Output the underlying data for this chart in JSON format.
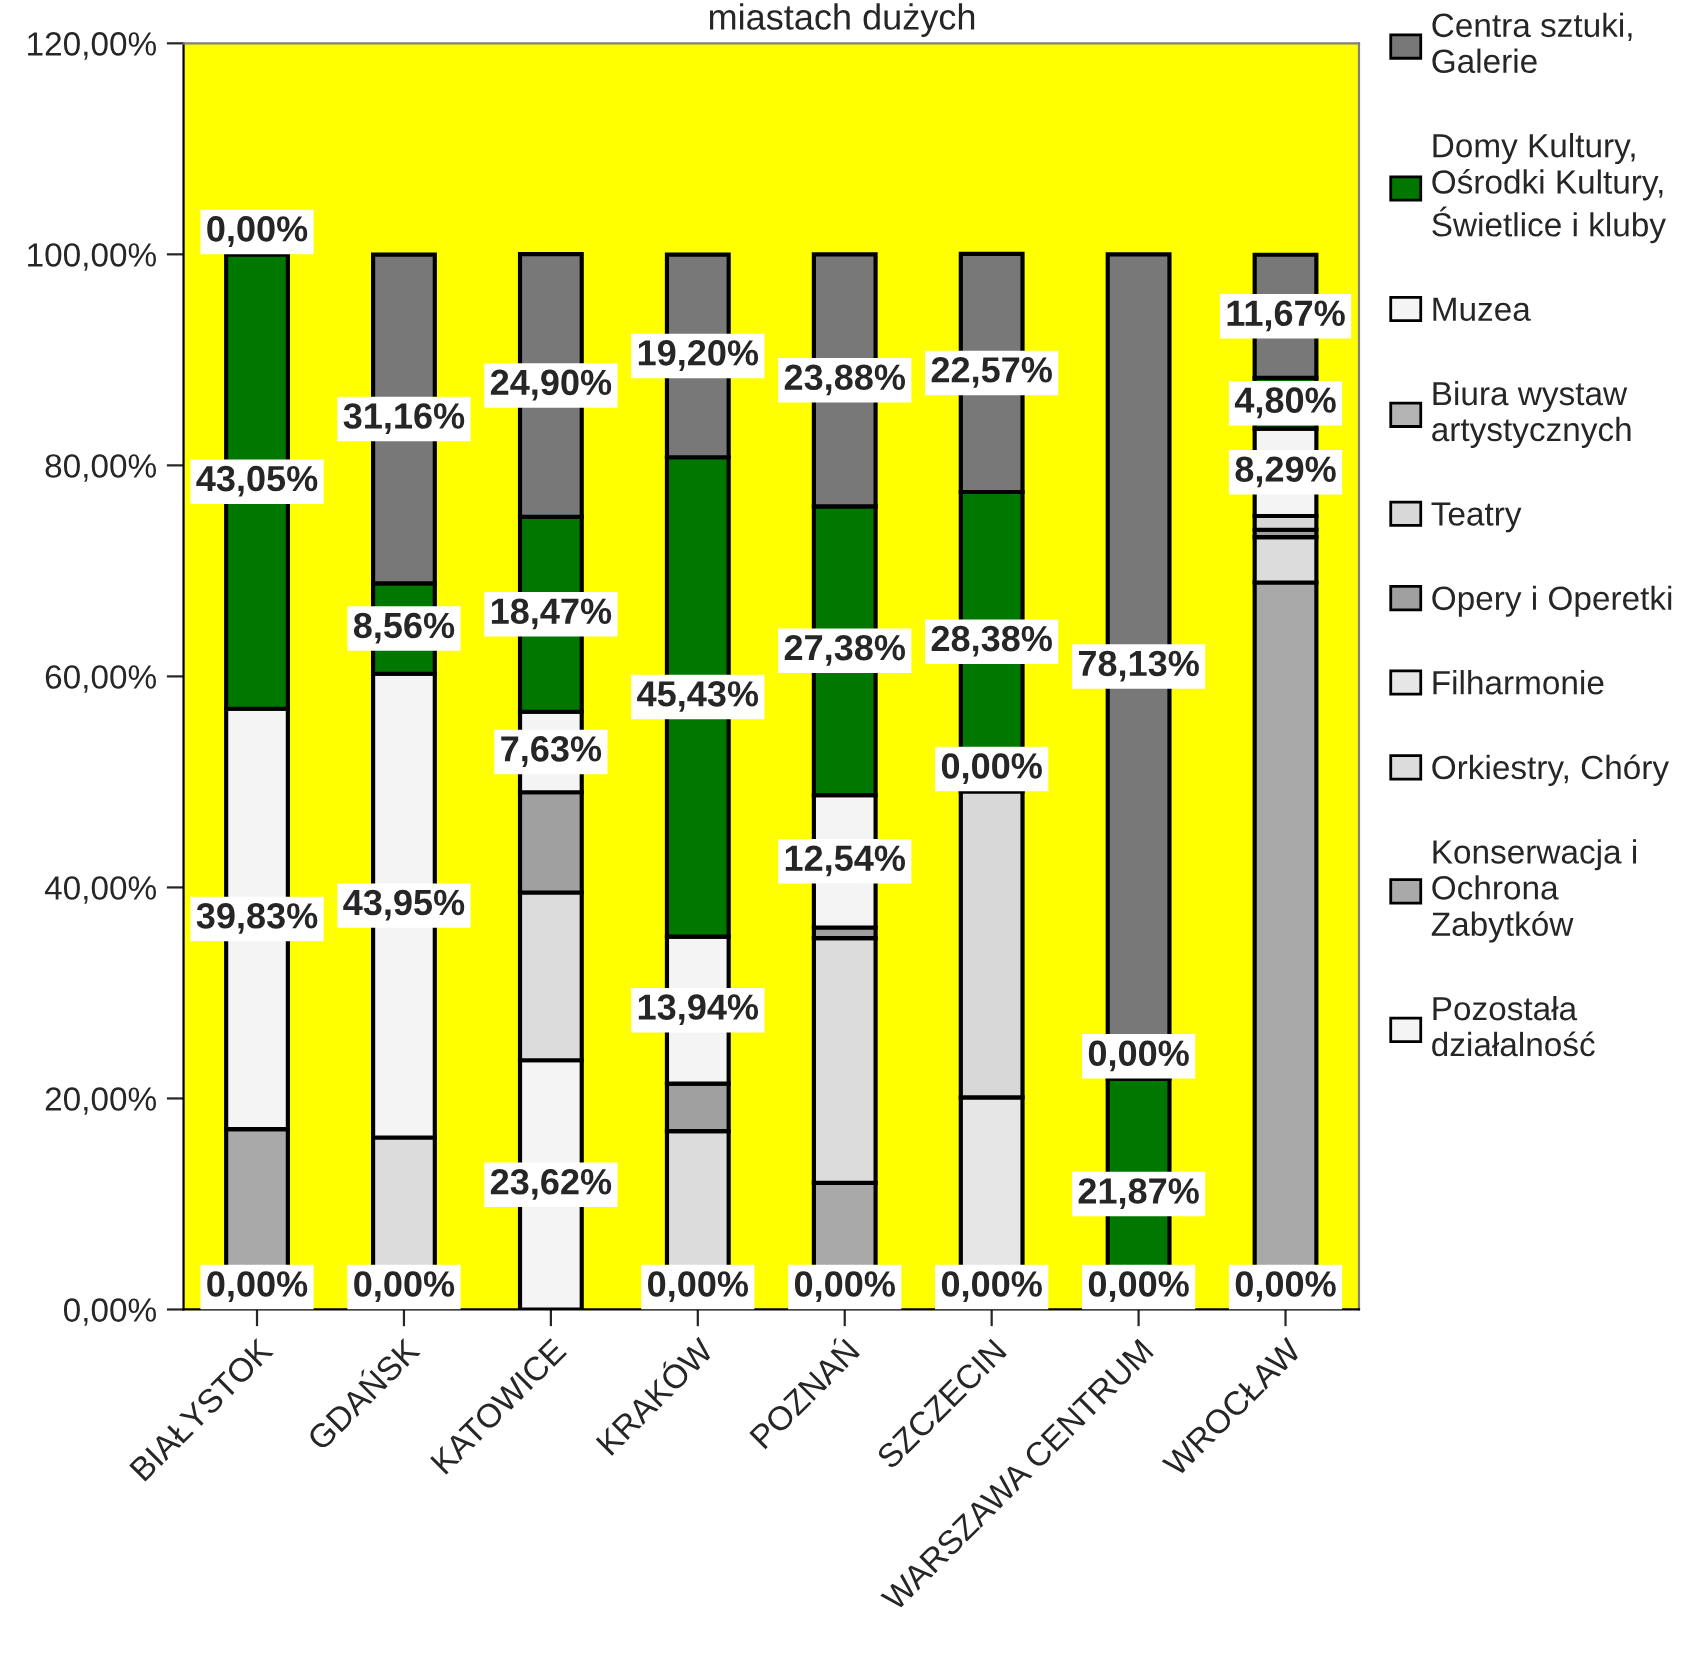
{
  "chart_data": {
    "type": "bar",
    "stacked": true,
    "title": "miastach dużych",
    "categories": [
      "BIAŁYSTOK",
      "GDAŃSK",
      "KATOWICE",
      "KRAKÓW",
      "POZNAŃ",
      "SZCZECIN",
      "WARSZAWA CENTRUM",
      "WROCŁAW"
    ],
    "ylim": [
      0,
      120
    ],
    "yticks": [
      {
        "value": 0,
        "label": "0,00%"
      },
      {
        "value": 20,
        "label": "20,00%"
      },
      {
        "value": 40,
        "label": "40,00%"
      },
      {
        "value": 60,
        "label": "60,00%"
      },
      {
        "value": 80,
        "label": "80,00%"
      },
      {
        "value": 100,
        "label": "100,00%"
      },
      {
        "value": 120,
        "label": "120,00%"
      }
    ],
    "grid": false,
    "legend": "right",
    "series": [
      {
        "name": "Pozostała\ndziałalność",
        "color": "#f4f4f4",
        "values": [
          0,
          0,
          23.62,
          0,
          0,
          0,
          0,
          0
        ],
        "value_labels": [
          null,
          null,
          "23,62%",
          null,
          null,
          null,
          null,
          null
        ]
      },
      {
        "name": "Konserwacja i\nOchrona\nZabytków",
        "color": "#a9a9a9",
        "values": [
          17.1,
          0,
          0,
          0,
          12.0,
          0,
          0,
          68.9
        ]
      },
      {
        "name": "Orkiestry, Chóry",
        "color": "#dcdcdc",
        "values": [
          0,
          16.3,
          15.9,
          16.9,
          23.2,
          0,
          0,
          4.3
        ]
      },
      {
        "name": "Filharmonie",
        "color": "#e6e6e6",
        "values": [
          0,
          0,
          0,
          0,
          0,
          20.1,
          0,
          0
        ]
      },
      {
        "name": "Opery i Operetki",
        "color": "#a0a0a0",
        "values": [
          0,
          0,
          9.5,
          4.5,
          1.0,
          0,
          0,
          0.7
        ]
      },
      {
        "name": "Teatry",
        "color": "#d8d8d8",
        "values": [
          0,
          0,
          0,
          0,
          0,
          29.0,
          0,
          1.3
        ]
      },
      {
        "name": "Biura wystaw\nartystycznych",
        "color": "#b4b4b4",
        "values": [
          0,
          0,
          0,
          0,
          0,
          0,
          0,
          0
        ]
      },
      {
        "name": "Muzea",
        "color": "#f4f4f4",
        "values": [
          39.83,
          43.95,
          7.63,
          13.94,
          12.54,
          0,
          0,
          8.29
        ],
        "value_labels": [
          "39,83%",
          "43,95%",
          "7,63%",
          "13,94%",
          "12,54%",
          null,
          null,
          "8,29%"
        ]
      },
      {
        "name": "Domy Kultury,\nOśrodki Kultury,\nŚwietlice i kluby",
        "color": "#007800",
        "values": [
          43.05,
          8.56,
          18.47,
          45.43,
          27.38,
          28.38,
          21.87,
          4.8
        ],
        "value_labels": [
          "43,05%",
          "8,56%",
          "18,47%",
          "45,43%",
          "27,38%",
          "28,38%",
          "21,87%",
          "4,80%"
        ]
      },
      {
        "name": "Centra sztuki,\nGalerie",
        "color": "#787878",
        "values": [
          0,
          31.16,
          24.9,
          19.2,
          23.88,
          22.57,
          78.13,
          11.67
        ],
        "value_labels": [
          null,
          "31,16%",
          "24,90%",
          "19,20%",
          "23,88%",
          "22,57%",
          "78,13%",
          "11,67%"
        ]
      }
    ],
    "annotations": [
      {
        "text": "0,00%",
        "x": "BIAŁYSTOK",
        "y": 0
      },
      {
        "text": "0,00%",
        "x": "GDAŃSK",
        "y": 0
      },
      {
        "text": "0,00%",
        "x": "KRAKÓW",
        "y": 0
      },
      {
        "text": "0,00%",
        "x": "POZNAŃ",
        "y": 0
      },
      {
        "text": "0,00%",
        "x": "SZCZECIN",
        "y": 0
      },
      {
        "text": "0,00%",
        "x": "WARSZAWA CENTRUM",
        "y": 0
      },
      {
        "text": "0,00%",
        "x": "WROCŁAW",
        "y": 0
      },
      {
        "text": "0,00%",
        "x": "BIAŁYSTOK",
        "y": 100
      },
      {
        "text": "0,00%",
        "x": "SZCZECIN",
        "y": 49.1
      },
      {
        "text": "0,00%",
        "x": "WARSZAWA CENTRUM",
        "y": 21.87
      }
    ]
  }
}
